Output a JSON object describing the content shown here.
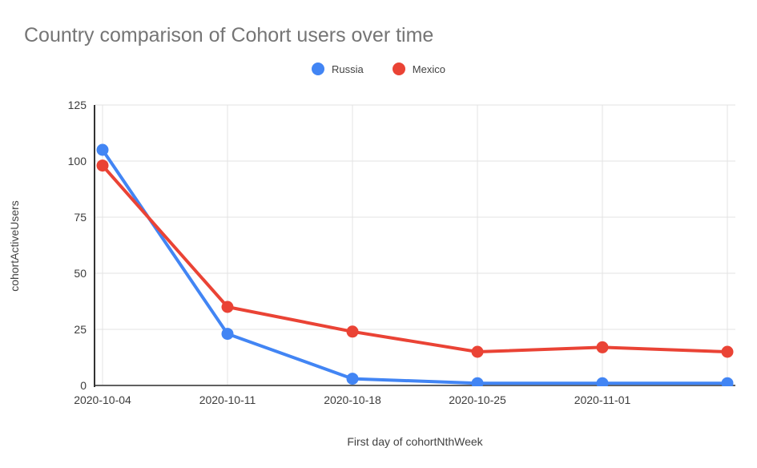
{
  "page": {
    "background_color": "#ffffff"
  },
  "chart_data": {
    "type": "line",
    "title": "Country comparison of Cohort users over time",
    "xlabel": "First day of cohortNthWeek",
    "ylabel": "cohortActiveUsers",
    "categories": [
      "2020-10-04",
      "2020-10-11",
      "2020-10-18",
      "2020-10-25",
      "2020-11-01",
      ""
    ],
    "y_ticks": [
      0,
      25,
      50,
      75,
      100,
      125
    ],
    "ylim": [
      0,
      125
    ],
    "grid": true,
    "legend_position": "top",
    "series": [
      {
        "name": "Russia",
        "color": "#4285F4",
        "values": [
          105,
          23,
          3,
          1,
          1,
          1
        ]
      },
      {
        "name": "Mexico",
        "color": "#EA4335",
        "values": [
          98,
          35,
          24,
          15,
          17,
          15
        ]
      }
    ],
    "style": {
      "title_color": "#757575",
      "tick_label_color": "#3c3c3c",
      "axis_title_color": "#424242",
      "gridline_color": "#e3e3e3",
      "y_axis_line_color": "#333333",
      "x_axis_line_color": "#616161"
    }
  }
}
